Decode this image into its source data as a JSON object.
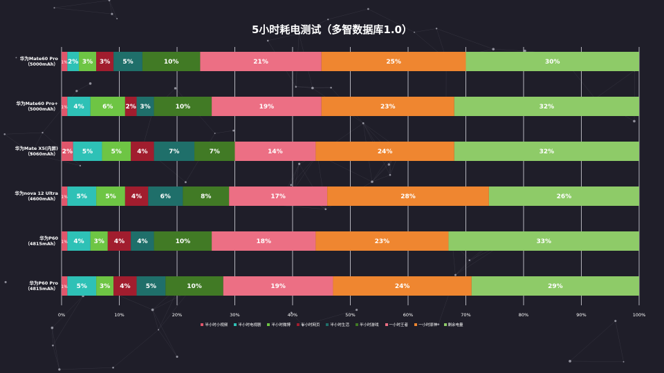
{
  "chart_data": {
    "type": "bar",
    "orientation": "horizontal-stacked-percent",
    "title": "5小时耗电测试（多智数据库1.0）",
    "categories": [
      "华为Mate60 Pro\n（5000mAh）",
      "华为Mate60 Pro+\n（5000mAh）",
      "华为Mate X5(内屏)\n（5060mAh）",
      "华为nova 12 Ultra\n（4600mAh）",
      "华为P60\n（4815mAh）",
      "华为P60 Pro\n（4815mAh）"
    ],
    "series": [
      {
        "name": "半小时小视频",
        "color": "#e0566b",
        "values": [
          1,
          1,
          2,
          1,
          1,
          1
        ]
      },
      {
        "name": "半小时电视剧",
        "color": "#2ec1b6",
        "values": [
          2,
          4,
          5,
          5,
          4,
          5
        ]
      },
      {
        "name": "半小时微博",
        "color": "#6ec544",
        "values": [
          3,
          6,
          5,
          5,
          3,
          3
        ]
      },
      {
        "name": "半小时网页",
        "color": "#a11d2e",
        "values": [
          3,
          2,
          4,
          4,
          4,
          4
        ]
      },
      {
        "name": "半小时生活",
        "color": "#1f6f6a",
        "values": [
          5,
          3,
          7,
          6,
          4,
          5
        ]
      },
      {
        "name": "半小时游戏",
        "color": "#417a25",
        "values": [
          10,
          10,
          7,
          8,
          10,
          10
        ]
      },
      {
        "name": "一小时王者",
        "color": "#ec6f84",
        "values": [
          21,
          19,
          14,
          17,
          18,
          19
        ]
      },
      {
        "name": "一小时原神",
        "color": "#ef8630",
        "values": [
          25,
          23,
          24,
          28,
          23,
          24
        ]
      },
      {
        "name": "剩余电量",
        "color": "#8ecb68",
        "values": [
          30,
          32,
          32,
          26,
          33,
          29
        ]
      }
    ],
    "segment_labels": [
      [
        "1%",
        "2%",
        "3%",
        "3%",
        "5%",
        "10%",
        "21%",
        "25%",
        "30%"
      ],
      [
        "1%",
        "4%",
        "6%",
        "2%",
        "3%",
        "10%",
        "19%",
        "23%",
        "32%"
      ],
      [
        "2%",
        "5%",
        "5%",
        "4%",
        "7%",
        "7%",
        "14%",
        "24%",
        "32%"
      ],
      [
        "1%",
        "5%",
        "5%",
        "4%",
        "6%",
        "8%",
        "17%",
        "28%",
        "26%"
      ],
      [
        "1%",
        "4%",
        "3%",
        "4%",
        "4%",
        "10%",
        "18%",
        "23%",
        "33%"
      ],
      [
        "1%",
        "5%",
        "3%",
        "4%",
        "5%",
        "10%",
        "19%",
        "24%",
        "29%"
      ]
    ],
    "x_ticks": [
      "0%",
      "10%",
      "20%",
      "30%",
      "40%",
      "50%",
      "60%",
      "70%",
      "80%",
      "90%",
      "100%"
    ],
    "xlim": [
      0,
      100
    ],
    "grid": true,
    "legend_position": "bottom-center"
  }
}
